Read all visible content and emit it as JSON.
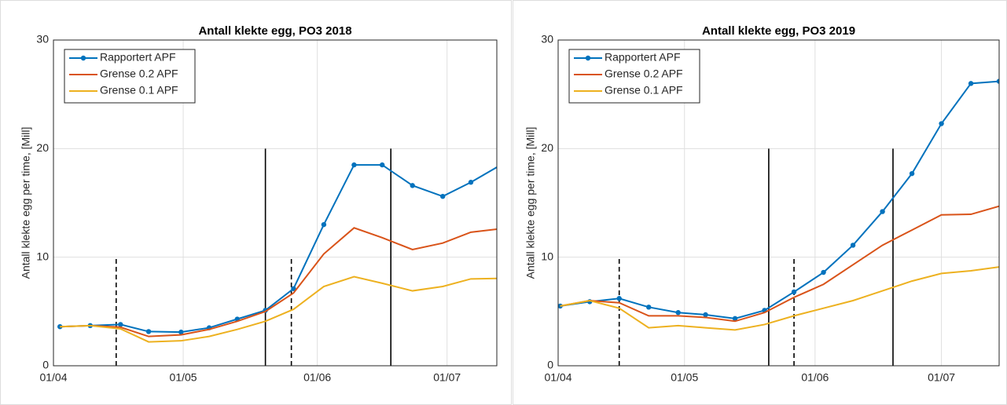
{
  "chart_data": [
    {
      "type": "line",
      "title": "Antall klekte egg, PO3 2018",
      "ylabel": "Antall klekte egg per time, [Mill]",
      "x": [
        1.5,
        8.5,
        15.5,
        22,
        29.5,
        36,
        42.5,
        49,
        55.5,
        62.5,
        69.5,
        76,
        83,
        90,
        96.5,
        103
      ],
      "series": [
        {
          "name": "Rapportert APF",
          "color": "#0072bd",
          "marker": true,
          "values": [
            3.6,
            3.7,
            3.8,
            3.15,
            3.1,
            3.5,
            4.3,
            5.1,
            7.1,
            13.0,
            18.5,
            18.5,
            16.6,
            15.6,
            16.9,
            18.4
          ]
        },
        {
          "name": "Grense 0.2 APF",
          "color": "#d95319",
          "marker": false,
          "values": [
            3.6,
            3.7,
            3.55,
            2.7,
            2.85,
            3.35,
            4.1,
            5.0,
            6.7,
            10.3,
            12.7,
            11.8,
            10.7,
            11.3,
            12.3,
            12.6
          ]
        },
        {
          "name": "Grense 0.1 APF",
          "color": "#edb120",
          "marker": false,
          "values": [
            3.6,
            3.7,
            3.4,
            2.2,
            2.3,
            2.7,
            3.35,
            4.1,
            5.2,
            7.3,
            8.2,
            7.6,
            6.9,
            7.3,
            8.0,
            8.05
          ]
        }
      ],
      "vlines": [
        {
          "x": 14.5,
          "top": 10,
          "dashed": true
        },
        {
          "x": 49,
          "top": 20,
          "dashed": false
        },
        {
          "x": 55,
          "top": 10,
          "dashed": true
        },
        {
          "x": 78,
          "top": 20,
          "dashed": false
        }
      ],
      "xlim": [
        0,
        102.5
      ],
      "xticks": [
        {
          "value": 0,
          "label": "01/04"
        },
        {
          "value": 30,
          "label": "01/05"
        },
        {
          "value": 61,
          "label": "01/06"
        },
        {
          "value": 91,
          "label": "01/07"
        }
      ],
      "ylim": [
        0,
        30
      ],
      "yticks": [
        0,
        10,
        20,
        30
      ],
      "grid": true,
      "legend": "upper left"
    },
    {
      "type": "line",
      "title": "Antall klekte egg, PO3 2019",
      "ylabel": "Antall klekte egg per time, [Mill]",
      "x": [
        0.5,
        7.5,
        14.5,
        21.5,
        28.5,
        35,
        42,
        49,
        56,
        63,
        70,
        77,
        84,
        91,
        98,
        104.7
      ],
      "series": [
        {
          "name": "Rapportert APF",
          "color": "#0072bd",
          "marker": true,
          "values": [
            5.5,
            5.9,
            6.2,
            5.4,
            4.9,
            4.7,
            4.35,
            5.1,
            6.8,
            8.6,
            11.1,
            14.2,
            17.7,
            22.3,
            26.0,
            26.2
          ]
        },
        {
          "name": "Grense 0.2 APF",
          "color": "#d95319",
          "marker": false,
          "values": [
            5.5,
            6.0,
            5.8,
            4.6,
            4.6,
            4.45,
            4.1,
            4.9,
            6.3,
            7.5,
            9.3,
            11.1,
            12.5,
            13.9,
            13.95,
            14.7
          ]
        },
        {
          "name": "Grense 0.1 APF",
          "color": "#edb120",
          "marker": false,
          "values": [
            5.5,
            6.0,
            5.3,
            3.5,
            3.7,
            3.5,
            3.3,
            3.8,
            4.6,
            5.3,
            6.0,
            6.9,
            7.8,
            8.5,
            8.75,
            9.1
          ]
        }
      ],
      "vlines": [
        {
          "x": 14.5,
          "top": 10,
          "dashed": true
        },
        {
          "x": 50,
          "top": 20,
          "dashed": false
        },
        {
          "x": 56,
          "top": 10,
          "dashed": true
        },
        {
          "x": 79.5,
          "top": 20,
          "dashed": false
        }
      ],
      "xlim": [
        0,
        104.7
      ],
      "xticks": [
        {
          "value": 0,
          "label": "01/04"
        },
        {
          "value": 30,
          "label": "01/05"
        },
        {
          "value": 61,
          "label": "01/06"
        },
        {
          "value": 91,
          "label": "01/07"
        }
      ],
      "ylim": [
        0,
        30
      ],
      "yticks": [
        0,
        10,
        20,
        30
      ],
      "grid": true,
      "legend": "upper left"
    }
  ]
}
